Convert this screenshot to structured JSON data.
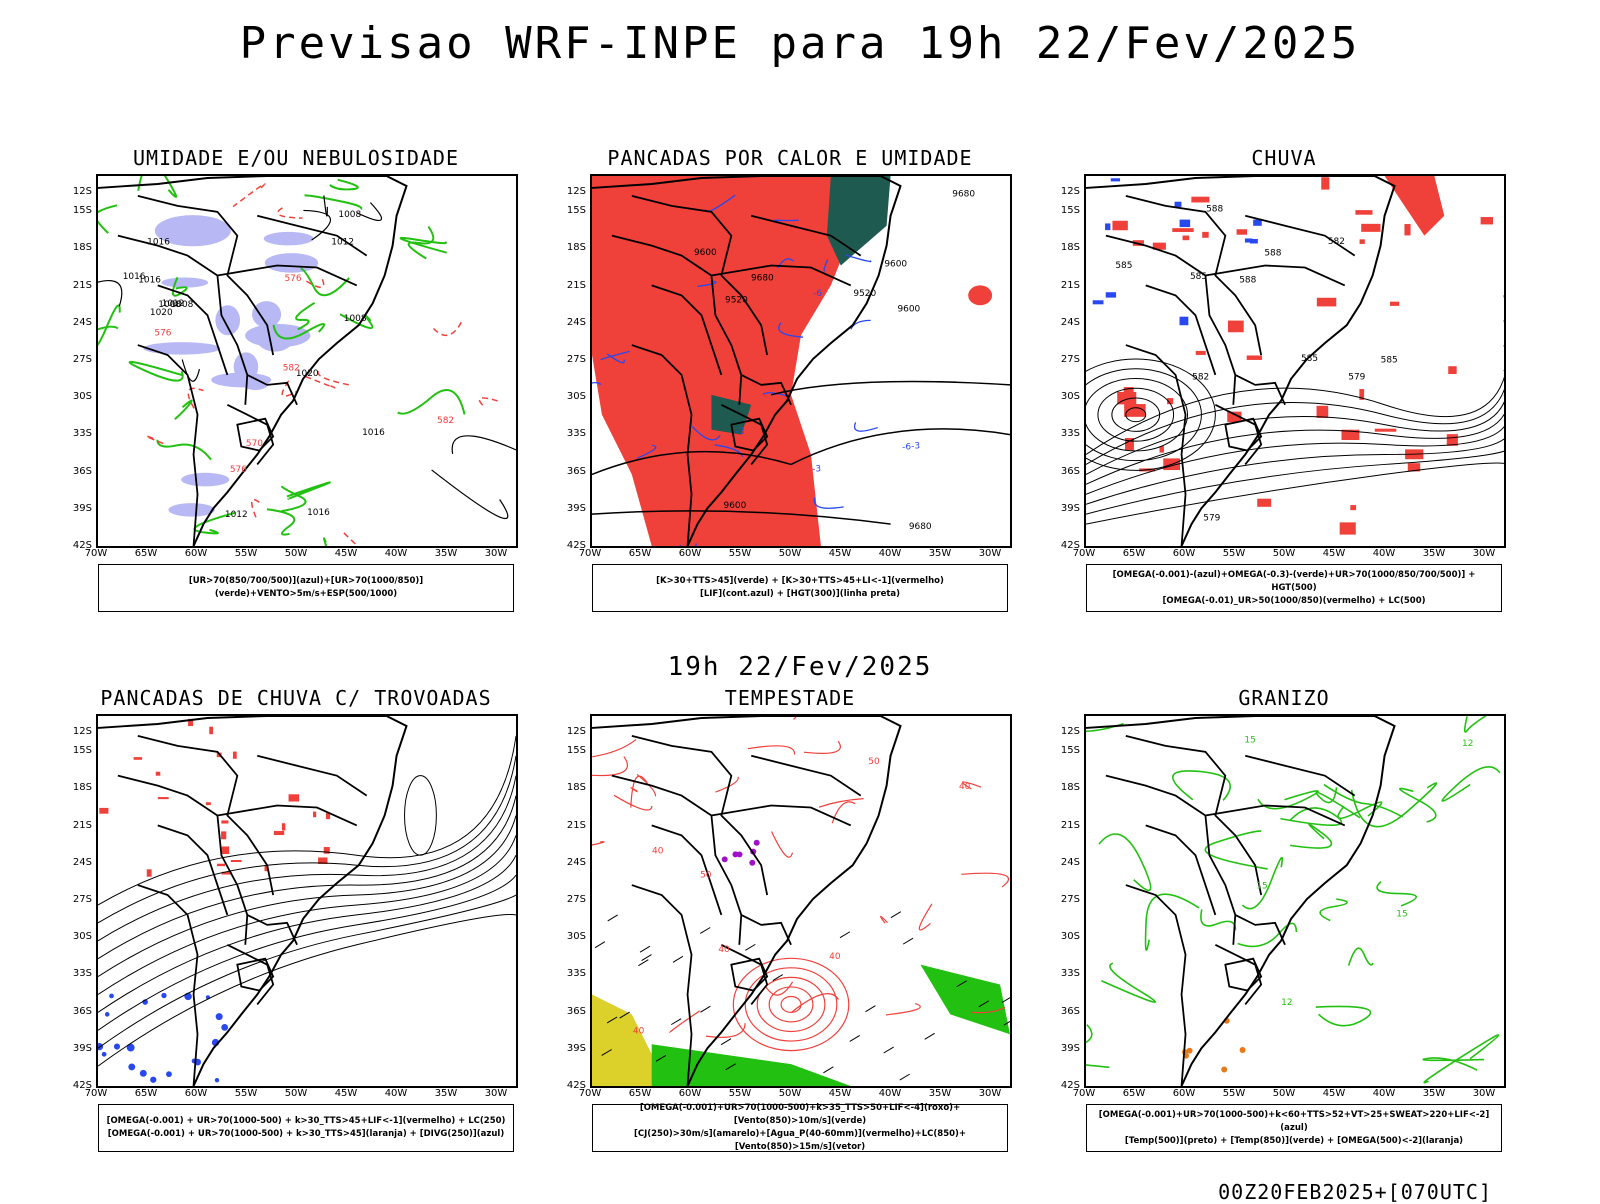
{
  "title": "Previsao WRF-INPE  para 19h 22/Fev/2025",
  "mid_date": "19h 22/Fev/2025",
  "footer": "00Z20FEB2025+[070UTC]",
  "lat_ticks": [
    "12S",
    "15S",
    "18S",
    "21S",
    "24S",
    "27S",
    "30S",
    "33S",
    "36S",
    "39S",
    "42S"
  ],
  "lon_ticks": [
    "70W",
    "65W",
    "60W",
    "55W",
    "50W",
    "45W",
    "40W",
    "35W",
    "30W"
  ],
  "colors": {
    "red": "#f0403a",
    "green": "#22c010",
    "blue": "#2848f0",
    "lavender": "#b8b8f4",
    "teal": "#1f5a50",
    "yellow": "#dcd02a",
    "purple": "#a010c8",
    "orange": "#e87818",
    "black": "#000000"
  },
  "panels": [
    {
      "title": "UMIDADE E/OU NEBULOSIDADE",
      "legend": [
        "[UR>70(850/700/500)](azul)+[UR>70(1000/850)](verde)+VENTO>5m/s+ESP(500/1000)"
      ],
      "contour_labels": [
        "1008",
        "1008",
        "1012",
        "1012",
        "1016",
        "1016",
        "1012",
        "1016",
        "1020",
        "1016",
        "1020",
        "1016",
        "1008",
        "1008",
        "576",
        "576",
        "582",
        "582",
        "570",
        "576"
      ]
    },
    {
      "title": "PANCADAS POR CALOR E UMIDADE",
      "legend": [
        "[K>30+TTS>45](verde) + [K>30+TTS>45+LI<-1](vermelho)",
        "[LIF](cont.azul) + [HGT(300)](linha preta)"
      ],
      "contour_labels": [
        "9600",
        "9520",
        "9600",
        "9680",
        "9600",
        "9680",
        "9520",
        "9680",
        "9600",
        "-3",
        "-3",
        "-6",
        "-6",
        "-3"
      ]
    },
    {
      "title": "CHUVA",
      "legend": [
        "[OMEGA(-0.001)-(azul)+OMEGA(-0.3)-(verde)+UR>70(1000/850/700/500)] + HGT(500)",
        "[OMEGA(-0.01)_UR>50(1000/850)(vermelho) + LC(500)"
      ],
      "contour_labels": [
        "585",
        "588",
        "585",
        "582",
        "579",
        "585",
        "588",
        "582",
        "585",
        "579",
        "588"
      ]
    },
    {
      "title": "PANCADAS DE CHUVA C/ TROVOADAS",
      "legend": [
        "[OMEGA(-0.001) + UR>70(1000-500) + k>30_TTS>45+LIF<-1](vermelho) + LC(250)",
        "[OMEGA(-0.001) + UR>70(1000-500) + k>30_TTS>45](laranja) + [DIVG(250)](azul)"
      ],
      "contour_labels": []
    },
    {
      "title": "TEMPESTADE",
      "legend": [
        "[OMEGA(-0.001)+UR>70(1000-500)+k>35_TTS>50+LIF<-4](roxo)+[Vento(850)>10m/s](verde)",
        "[CJ(250)>30m/s](amarelo)+[Agua_P(40-60mm)](vermelho)+LC(850)+[Vento(850)>15m/s](vetor)"
      ],
      "contour_labels": [
        "50",
        "40",
        "40",
        "40",
        "50",
        "40",
        "40"
      ]
    },
    {
      "title": "GRANIZO",
      "legend": [
        "[OMEGA(-0.001)+UR>70(1000-500)+k<60+TTS>52+VT>25+SWEAT>220+LIF<-2](azul)",
        "[Temp(500)](preto) + [Temp(850)](verde) + [OMEGA(500)<-2](laranja)"
      ],
      "contour_labels": [
        "12",
        "15",
        "15",
        "12",
        "15"
      ]
    }
  ]
}
